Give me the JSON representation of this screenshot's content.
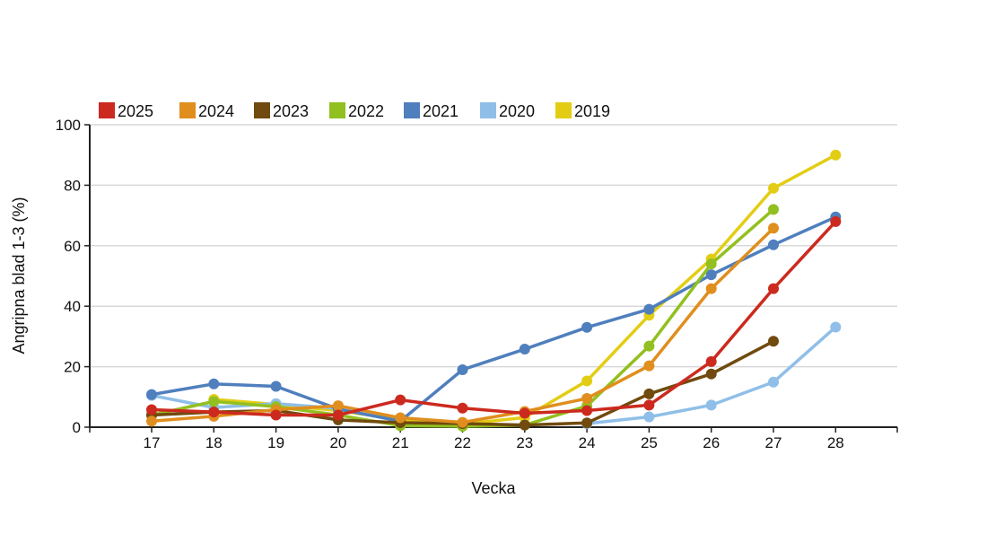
{
  "chart_data": {
    "type": "line",
    "title": "",
    "xlabel": "Vecka",
    "ylabel": "Angripna blad 1-3 (%)",
    "x": [
      "17",
      "18",
      "19",
      "20",
      "21",
      "22",
      "23",
      "24",
      "25",
      "26",
      "27",
      "28"
    ],
    "ylim": [
      0,
      100
    ],
    "yticks": [
      "0",
      "20",
      "40",
      "60",
      "80",
      "100"
    ],
    "grid": "horizontal",
    "legend_position": "top-left",
    "series": [
      {
        "name": "2025",
        "color": "#cc2a1e",
        "values": [
          5.8,
          5.0,
          4.0,
          4.0,
          9.0,
          6.3,
          4.6,
          5.5,
          7.3,
          21.7,
          45.8,
          68.0
        ]
      },
      {
        "name": "2024",
        "color": "#e08e1e",
        "values": [
          2.0,
          3.6,
          5.8,
          7.1,
          3.1,
          1.6,
          5.2,
          9.5,
          20.3,
          45.8,
          65.8,
          null
        ]
      },
      {
        "name": "2023",
        "color": "#704a0e",
        "values": [
          4.0,
          5.0,
          5.5,
          2.4,
          1.5,
          1.2,
          0.7,
          1.4,
          11.0,
          17.6,
          28.4,
          null
        ]
      },
      {
        "name": "2022",
        "color": "#92c020",
        "values": [
          4.0,
          8.5,
          6.8,
          4.0,
          0.5,
          0.3,
          0.7,
          7.0,
          26.8,
          54.0,
          72.0,
          null
        ]
      },
      {
        "name": "2021",
        "color": "#4f7fbd",
        "values": [
          10.8,
          14.3,
          13.5,
          6.0,
          2.0,
          19.0,
          25.8,
          33.0,
          39.0,
          50.4,
          60.3,
          69.5
        ]
      },
      {
        "name": "2020",
        "color": "#8fbfe8",
        "values": [
          10.5,
          6.5,
          7.8,
          6.2,
          null,
          null,
          null,
          1.2,
          3.4,
          7.3,
          14.9,
          33.1
        ]
      },
      {
        "name": "2019",
        "color": "#e3cd14",
        "values": [
          null,
          9.2,
          7.5,
          5.5,
          2.5,
          1.0,
          3.2,
          15.3,
          37.0,
          55.6,
          79.0,
          90.0
        ]
      }
    ]
  }
}
